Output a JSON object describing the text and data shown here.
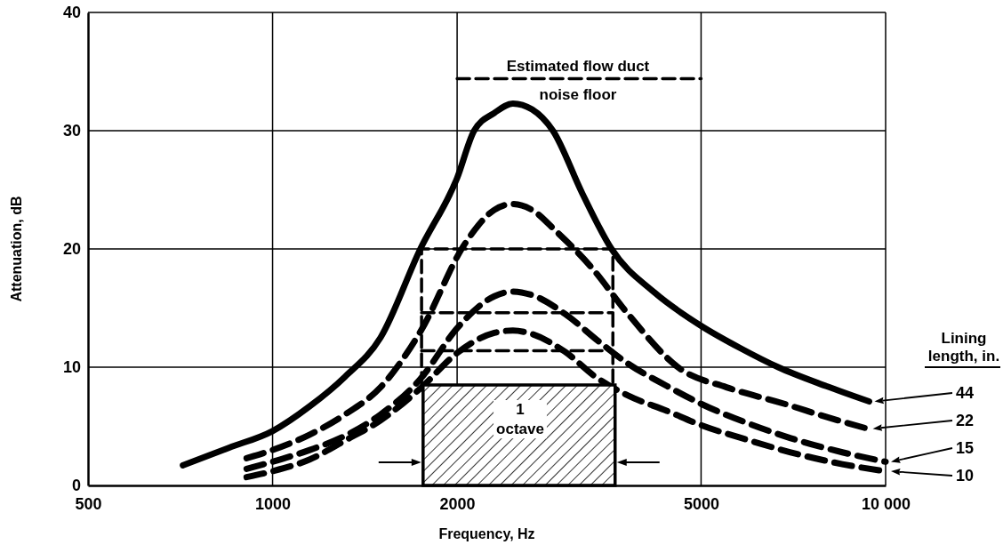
{
  "chart_data": {
    "type": "line",
    "xlabel": "Frequency, Hz",
    "ylabel": "Attenuation, dB",
    "legend_title": "Lining length, in.",
    "legend": "right",
    "grid": true,
    "log": "x",
    "marker": "none",
    "xlim": [
      500,
      10000
    ],
    "xticks": [
      500,
      1000,
      2000,
      5000,
      {
        "value": 10000,
        "label": "10 000"
      }
    ],
    "ylim": [
      0,
      40
    ],
    "yticks": [
      0,
      10,
      20,
      30,
      40
    ],
    "series": [
      {
        "name": "44",
        "color": "#000000",
        "line_style": "solid",
        "x": [
          714,
          850,
          1000,
          1150,
          1313,
          1500,
          1742,
          2000,
          2132,
          2300,
          2466,
          2650,
          2866,
          3200,
          3572,
          4200,
          5000,
          5800,
          6680,
          8000,
          9400
        ],
        "values": [
          1.7,
          3.2,
          4.6,
          6.7,
          9.2,
          12.5,
          20,
          26,
          30,
          31.5,
          32.3,
          31.8,
          30,
          24.7,
          20,
          16.3,
          13.5,
          11.6,
          10,
          8.4,
          7.1
        ]
      },
      {
        "name": "22",
        "color": "#000000",
        "line_style": "dashed",
        "x": [
          907,
          1000,
          1150,
          1313,
          1500,
          1742,
          2063,
          2300,
          2466,
          2650,
          2900,
          3305,
          3800,
          4640,
          5500,
          6840,
          8000,
          9340
        ],
        "values": [
          2.3,
          3.0,
          4.3,
          6.0,
          8.3,
          13,
          20.5,
          23.3,
          23.8,
          23.3,
          21.5,
          18.5,
          14.5,
          9.8,
          8.3,
          6.9,
          5.8,
          4.8
        ]
      },
      {
        "name": "15",
        "color": "#000000",
        "line_style": "dashed",
        "x": [
          907,
          1000,
          1150,
          1313,
          1500,
          1742,
          2000,
          2300,
          2466,
          2650,
          3000,
          3400,
          3800,
          4400,
          5000,
          6000,
          7000,
          8500,
          10000
        ],
        "values": [
          1.4,
          2.0,
          3.0,
          4.2,
          6.0,
          9.0,
          13.3,
          16,
          16.4,
          16.1,
          14.5,
          12.2,
          10.3,
          8.4,
          6.9,
          5.2,
          4,
          2.8,
          2.0
        ]
      },
      {
        "name": "10",
        "color": "#000000",
        "line_style": "dashed",
        "x": [
          907,
          1000,
          1150,
          1313,
          1500,
          1742,
          2000,
          2300,
          2466,
          2650,
          3000,
          3360,
          3800,
          4400,
          5000,
          6000,
          7000,
          8500,
          10000
        ],
        "values": [
          0.7,
          1.2,
          2.2,
          3.8,
          5.5,
          8.2,
          11.2,
          12.9,
          13.1,
          12.8,
          11.3,
          9.2,
          7.6,
          6.3,
          5.1,
          3.8,
          2.8,
          1.8,
          1.2
        ]
      },
      {
        "type": "line",
        "color": "#000000",
        "line_style": "dashed",
        "x": [
          2000,
          5000
        ],
        "values": [
          34.4,
          34.4
        ]
      },
      {
        "type": "area",
        "color": "#000000",
        "x": [
          1760,
          3620
        ],
        "values": [
          8.5,
          8.5
        ]
      },
      {
        "type": "line",
        "color": "#000000",
        "line_style": "dashed",
        "x": [
          1750,
          1750,
          3590,
          3590
        ],
        "values": [
          8.5,
          20,
          20,
          8.5
        ]
      },
      {
        "type": "line",
        "color": "#000000",
        "line_style": "dashed",
        "x": [
          1750,
          3590
        ],
        "values": [
          14.6,
          14.6
        ]
      },
      {
        "type": "line",
        "color": "#000000",
        "line_style": "dashed",
        "x": [
          1750,
          3590
        ],
        "values": [
          11.4,
          11.4
        ]
      }
    ],
    "annotations": [
      "Estimated flow duct",
      "noise floor",
      "1\noctave"
    ]
  }
}
